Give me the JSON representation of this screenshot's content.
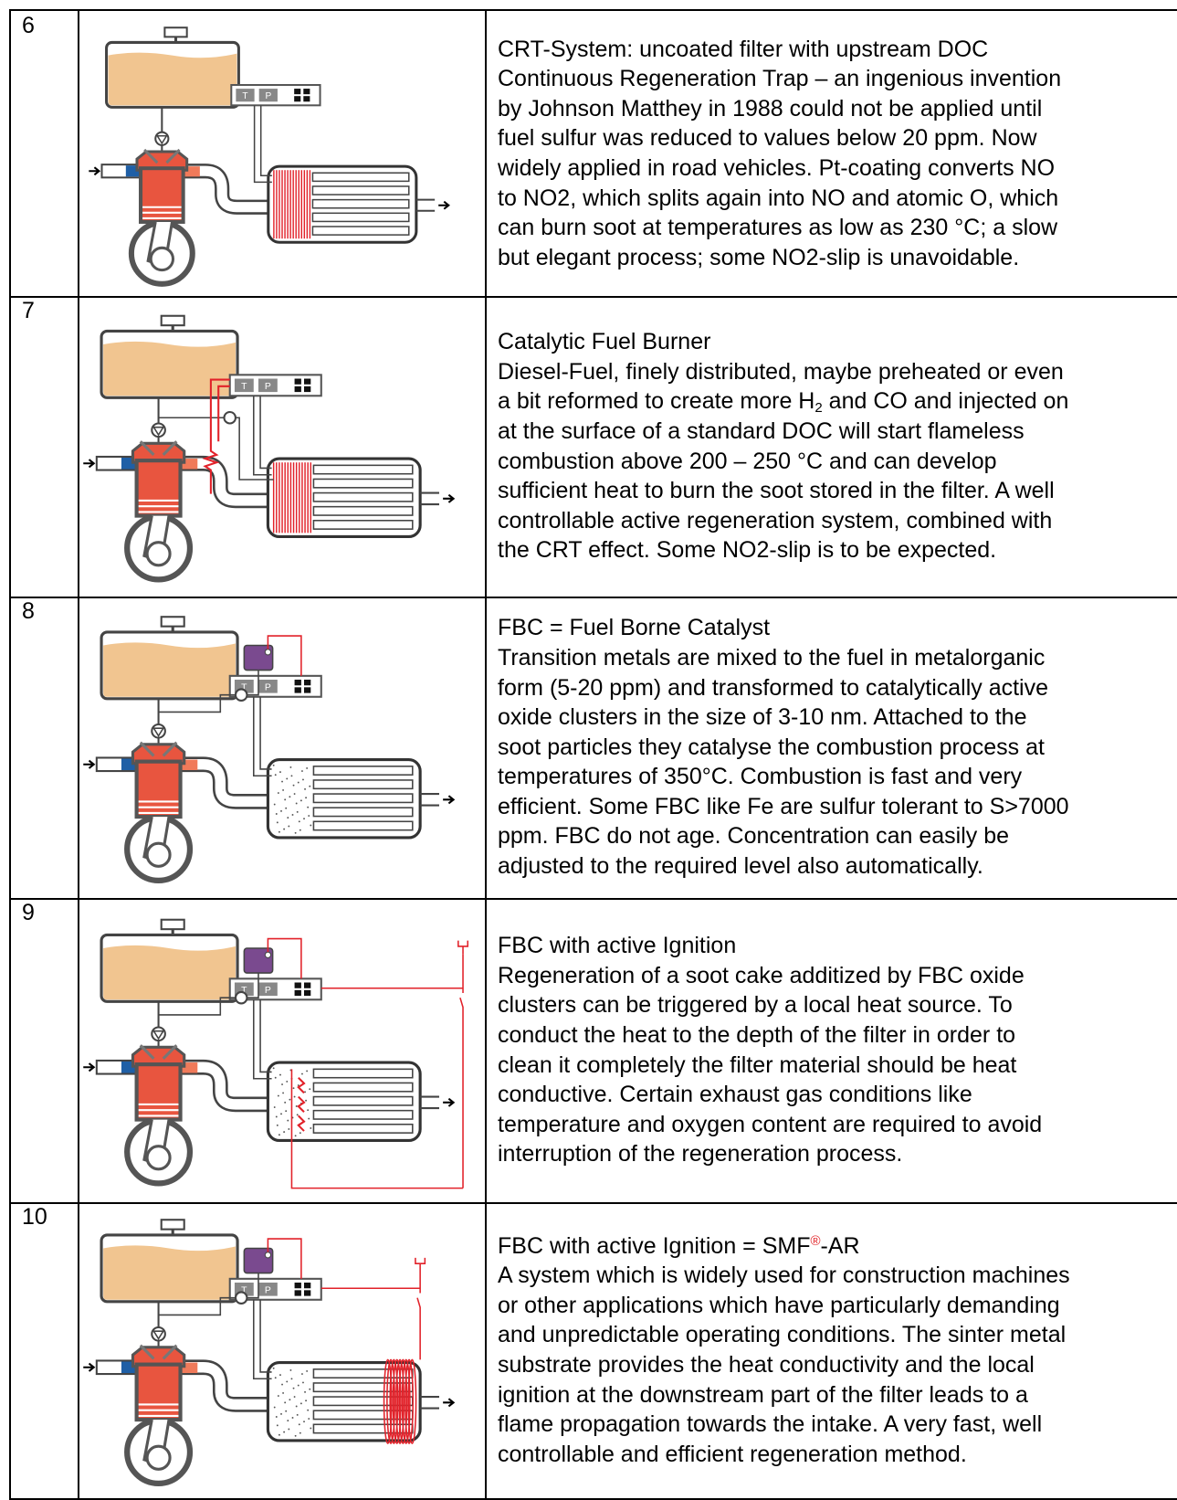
{
  "table": {
    "rows": [
      {
        "number": "6",
        "diagram": {
          "labels": [
            "T",
            "P"
          ]
        },
        "lines": [
          "CRT-System: uncoated filter with upstream DOC",
          "Continuous Regeneration Trap – an ingenious invention",
          "by Johnson Matthey in 1988 could not be applied until",
          "fuel sulfur was reduced to values below 20 ppm. Now",
          "widely applied in road vehicles. Pt-coating converts NO",
          "to NO2, which splits again into NO and atomic O, which",
          "can burn soot at temperatures as low as 230 °C; a slow",
          "but elegant process; some NO2-slip is unavoidable."
        ]
      },
      {
        "number": "7",
        "diagram": {
          "labels": [
            "T",
            "P"
          ]
        },
        "lines": [
          "Catalytic Fuel Burner",
          "Diesel-Fuel, finely distributed, maybe preheated or even",
          {
            "text": "a bit reformed to create more H",
            "sub": "2",
            "tail": " and CO and injected on"
          },
          "at the surface of a standard DOC will start flameless",
          "combustion above 200 – 250 °C and can develop",
          "sufficient heat to burn the soot stored in the filter. A well",
          "controllable active regeneration system, combined with",
          "the CRT effect. Some NO2-slip is to be expected."
        ]
      },
      {
        "number": "8",
        "diagram": {
          "labels": [
            "T",
            "P"
          ]
        },
        "lines": [
          "FBC = Fuel Borne Catalyst",
          "Transition metals are mixed to the fuel in metalorganic",
          "form (5-20 ppm) and transformed to catalytically active",
          "oxide clusters in the size of 3-10 nm. Attached to the",
          "soot particles they catalyse the combustion process at",
          "temperatures of 350°C. Combustion is fast and very",
          "efficient. Some FBC like Fe are sulfur tolerant to S>7000",
          "ppm. FBC do not age. Concentration can easily be",
          "adjusted to the required level also automatically."
        ]
      },
      {
        "number": "9",
        "diagram": {
          "labels": [
            "T",
            "P"
          ]
        },
        "lines": [
          "FBC with active Ignition",
          "Regeneration of a soot cake additized by FBC oxide",
          "clusters can be triggered by a local heat source. To",
          "conduct the heat to the depth of the filter in order to",
          "clean it completely the filter material should be heat",
          "conductive. Certain exhaust gas conditions like",
          "temperature and oxygen content are required to avoid",
          "interruption of the regeneration process."
        ]
      },
      {
        "number": "10",
        "diagram": {
          "labels": [
            "T",
            "P"
          ]
        },
        "lines": [
          {
            "text": "FBC with active Ignition = SMF",
            "sup": "®",
            "tail": "-AR"
          },
          "A system which is widely used for construction machines",
          "or other applications which have particularly demanding",
          "and unpredictable operating conditions. The sinter metal",
          "substrate provides the heat conductivity and the local",
          "ignition at the downstream part of the filter leads to a",
          "flame propagation towards the intake. A very fast, well",
          "controllable and efficient regeneration method."
        ]
      }
    ]
  }
}
